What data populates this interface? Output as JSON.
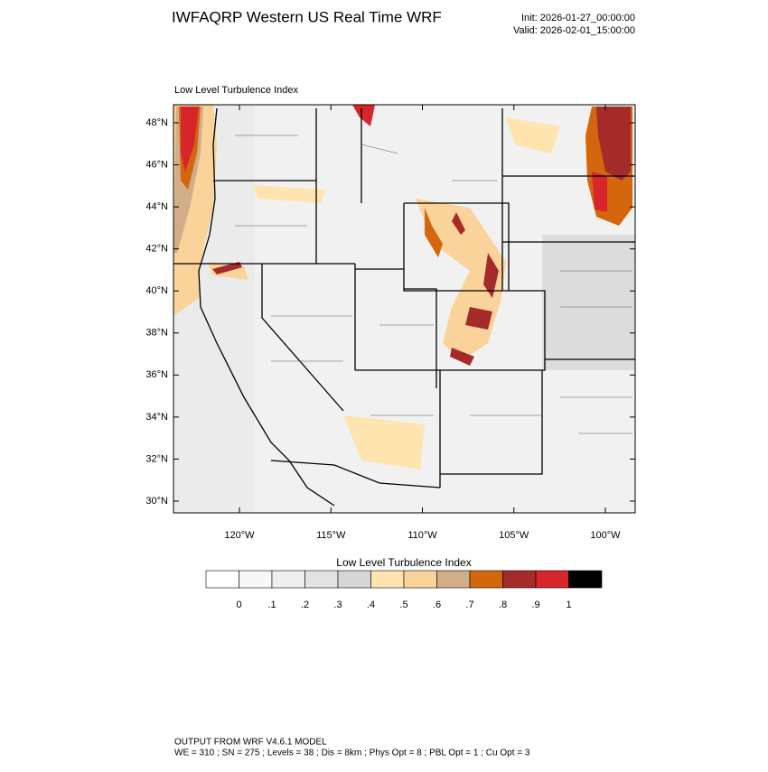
{
  "header": {
    "title": "IWFAQRP Western US Real Time WRF",
    "init": "Init: 2026-01-27_00:00:00",
    "valid": "Valid: 2026-02-01_15:00:00"
  },
  "map": {
    "subtitle": "Low Level Turbulence Index",
    "lat_ticks": [
      {
        "value": 48,
        "label": "48°N"
      },
      {
        "value": 46,
        "label": "46°N"
      },
      {
        "value": 44,
        "label": "44°N"
      },
      {
        "value": 42,
        "label": "42°N"
      },
      {
        "value": 40,
        "label": "40°N"
      },
      {
        "value": 38,
        "label": "38°N"
      },
      {
        "value": 36,
        "label": "36°N"
      },
      {
        "value": 34,
        "label": "34°N"
      },
      {
        "value": 32,
        "label": "32°N"
      },
      {
        "value": 30,
        "label": "30°N"
      }
    ],
    "lon_ticks": [
      {
        "value": -120,
        "label": "120°W"
      },
      {
        "value": -115,
        "label": "115°W"
      },
      {
        "value": -110,
        "label": "110°W"
      },
      {
        "value": -105,
        "label": "105°W"
      },
      {
        "value": -100,
        "label": "100°W"
      }
    ]
  },
  "colorbar": {
    "title": "Low Level Turbulence Index",
    "colors": [
      "#ffffff",
      "#f7f7f7",
      "#efefef",
      "#e3e3e3",
      "#d6d6d6",
      "#ffe4b0",
      "#f9d39a",
      "#d2ae88",
      "#d4670d",
      "#a52a2a",
      "#d7262b",
      "#000000"
    ],
    "labels": [
      "0",
      ".1",
      ".2",
      ".3",
      ".4",
      ".5",
      ".6",
      ".7",
      ".8",
      ".9",
      "1"
    ]
  },
  "footer": {
    "line1": "OUTPUT FROM WRF V4.6.1 MODEL",
    "line2": "WE = 310 ; SN = 275 ; Levels = 38 ; Dis = 8km ; Phys Opt = 8 ; PBL Opt = 1 ; Cu Opt = 3"
  }
}
